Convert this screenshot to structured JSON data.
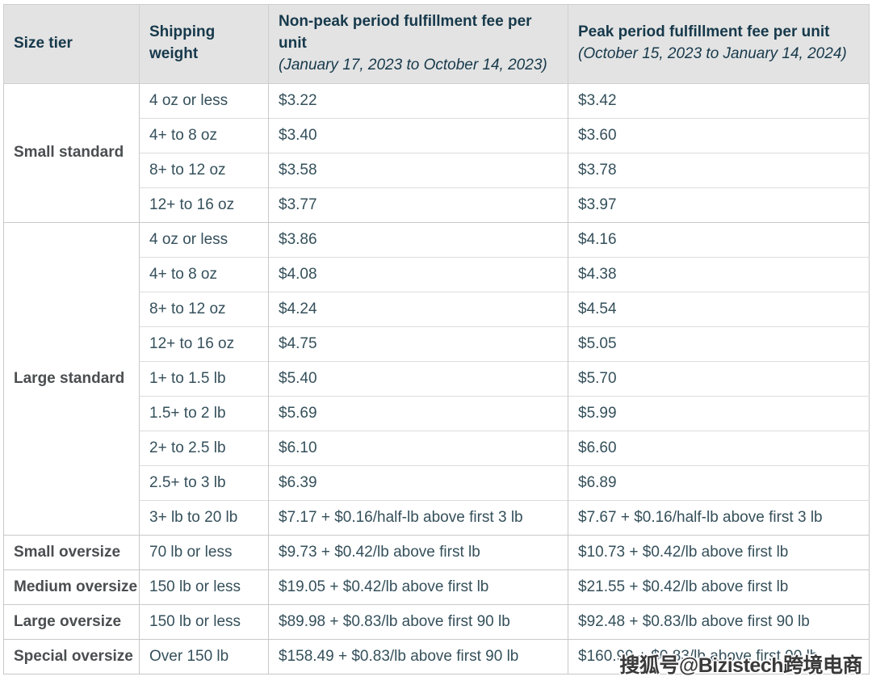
{
  "colors": {
    "header_bg": "#e3e3e3",
    "header_text": "#16394b",
    "body_text": "#35505b",
    "tier_text": "#4a4e50"
  },
  "table": {
    "columns": [
      {
        "title": "Size tier"
      },
      {
        "title": "Shipping weight"
      },
      {
        "title": "Non-peak period fulfillment fee per unit",
        "dates": "(January 17, 2023 to October 14, 2023)"
      },
      {
        "title": "Peak period fulfillment fee per unit",
        "dates": "(October 15, 2023 to January 14, 2024)"
      }
    ],
    "sections": [
      {
        "tier": "Small standard",
        "rows": [
          {
            "weight": "4 oz or less",
            "non_peak": "$3.22",
            "peak": "$3.42"
          },
          {
            "weight": "4+ to 8 oz",
            "non_peak": "$3.40",
            "peak": "$3.60"
          },
          {
            "weight": "8+ to 12 oz",
            "non_peak": "$3.58",
            "peak": "$3.78"
          },
          {
            "weight": "12+ to 16 oz",
            "non_peak": "$3.77",
            "peak": "$3.97"
          }
        ]
      },
      {
        "tier": "Large standard",
        "rows": [
          {
            "weight": "4 oz or less",
            "non_peak": "$3.86",
            "peak": "$4.16"
          },
          {
            "weight": "4+ to 8 oz",
            "non_peak": "$4.08",
            "peak": "$4.38"
          },
          {
            "weight": "8+ to 12 oz",
            "non_peak": "$4.24",
            "peak": "$4.54"
          },
          {
            "weight": "12+ to 16 oz",
            "non_peak": "$4.75",
            "peak": "$5.05"
          },
          {
            "weight": "1+ to 1.5 lb",
            "non_peak": "$5.40",
            "peak": "$5.70"
          },
          {
            "weight": "1.5+ to 2 lb",
            "non_peak": "$5.69",
            "peak": "$5.99"
          },
          {
            "weight": "2+ to 2.5 lb",
            "non_peak": "$6.10",
            "peak": "$6.60"
          },
          {
            "weight": "2.5+ to 3 lb",
            "non_peak": "$6.39",
            "peak": "$6.89"
          },
          {
            "weight": "3+ lb to 20 lb",
            "non_peak": "$7.17 + $0.16/half-lb above first 3 lb",
            "peak": "$7.67 + $0.16/half-lb above first 3 lb"
          }
        ]
      },
      {
        "tier": "Small oversize",
        "rows": [
          {
            "weight": "70 lb or less",
            "non_peak": "$9.73 + $0.42/lb above first lb",
            "peak": "$10.73 + $0.42/lb above first lb"
          }
        ]
      },
      {
        "tier": "Medium oversize",
        "rows": [
          {
            "weight": "150 lb or less",
            "non_peak": "$19.05 + $0.42/lb above first lb",
            "peak": "$21.55 + $0.42/lb above first lb"
          }
        ]
      },
      {
        "tier": "Large oversize",
        "rows": [
          {
            "weight": "150 lb or less",
            "non_peak": "$89.98 + $0.83/lb above first 90 lb",
            "peak": "$92.48 + $0.83/lb above first 90 lb"
          }
        ]
      },
      {
        "tier": "Special oversize",
        "rows": [
          {
            "weight": "Over 150 lb",
            "non_peak": "$158.49 + $0.83/lb above first 90 lb",
            "peak": "$160.99 + $0.83/lb above first 90 lb"
          }
        ]
      }
    ]
  },
  "watermark": {
    "text": "搜狐号@Bizistech跨境电商"
  }
}
